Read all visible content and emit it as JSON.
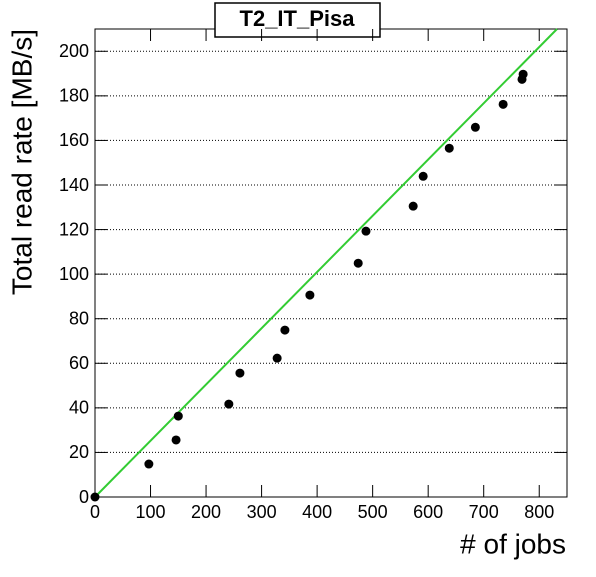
{
  "chart_data": {
    "type": "scatter",
    "title": "T2_IT_Pisa",
    "x_label": "# of jobs",
    "y_label": "Total read rate [MB/s]",
    "series": [
      {
        "color": "#000000",
        "x": [
          0,
          97,
          146,
          150,
          241,
          261,
          328,
          342,
          387,
          474,
          488,
          573,
          591,
          638,
          685,
          735,
          769,
          771
        ],
        "y": [
          0,
          14.8,
          25.6,
          36.3,
          41.7,
          55.6,
          62.3,
          74.9,
          90.6,
          104.9,
          119.3,
          130.5,
          143.9,
          156.5,
          165.9,
          176.2,
          187.4,
          189.7
        ]
      }
    ],
    "fit": {
      "color": "#33cc33",
      "x": [
        0,
        832
      ],
      "y": [
        0,
        210
      ]
    },
    "xlim": [
      0,
      850
    ],
    "xticks": [
      0,
      100,
      200,
      300,
      400,
      500,
      600,
      700,
      800
    ],
    "ylim": [
      0,
      210
    ],
    "yticks": [
      0,
      20,
      40,
      60,
      80,
      100,
      120,
      140,
      160,
      180,
      200
    ],
    "grid": "y"
  }
}
